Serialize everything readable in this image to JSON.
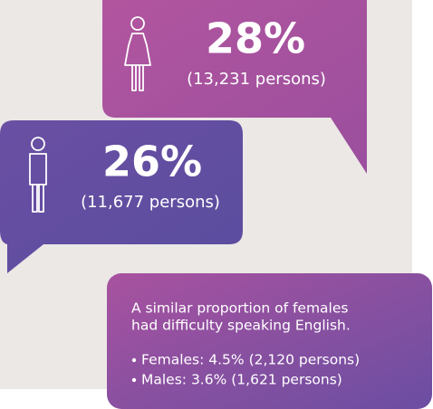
{
  "callouts": [
    {
      "percent": "28%",
      "count": "(13,231 persons)"
    },
    {
      "percent": "26%",
      "count": "(11,677 persons)"
    }
  ],
  "note": {
    "lines": [
      "A similar proportion of females",
      "had difficulty speaking English."
    ],
    "items": [
      "Females: 4.5% (2,120 persons)",
      "Males: 3.6% (1,621 persons)"
    ]
  }
}
